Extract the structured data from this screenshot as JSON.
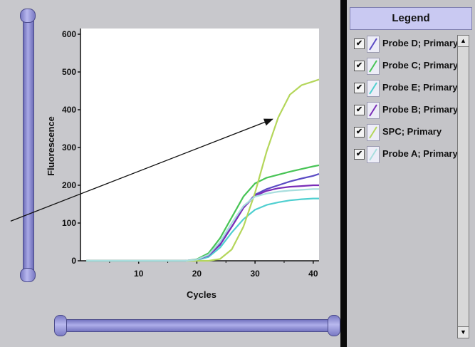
{
  "legend": {
    "title": "Legend",
    "items": [
      {
        "label": "Probe D; Primary",
        "color": "#5b4bc4",
        "checked": "✔"
      },
      {
        "label": "Probe C; Primary",
        "color": "#48c456",
        "checked": "✔"
      },
      {
        "label": "Probe E; Primary",
        "color": "#4fcfd0",
        "checked": "✔"
      },
      {
        "label": "Probe B; Primary",
        "color": "#7a2db8",
        "checked": "✔"
      },
      {
        "label": "SPC; Primary",
        "color": "#b4d65a",
        "checked": "✔"
      },
      {
        "label": "Probe A; Primary",
        "color": "#a8dede",
        "checked": "✔"
      }
    ],
    "scroll_up": "▲",
    "scroll_down": "▼"
  },
  "chart_data": {
    "type": "line",
    "xlabel": "Cycles",
    "ylabel": "Fluorescence",
    "xlim": [
      0,
      41
    ],
    "ylim": [
      0,
      600
    ],
    "x_ticks": [
      10,
      20,
      30,
      40
    ],
    "y_ticks": [
      0,
      100,
      200,
      300,
      400,
      500,
      600
    ],
    "grid": false,
    "series": [
      {
        "name": "Probe D; Primary",
        "color": "#5b4bc4",
        "x": [
          1,
          18,
          20,
          22,
          24,
          26,
          28,
          30,
          32,
          34,
          36,
          38,
          40,
          41
        ],
        "y": [
          0,
          0,
          3,
          15,
          45,
          90,
          140,
          175,
          190,
          200,
          210,
          218,
          225,
          230
        ]
      },
      {
        "name": "Probe C; Primary",
        "color": "#48c456",
        "x": [
          1,
          18,
          20,
          22,
          24,
          26,
          28,
          30,
          32,
          34,
          36,
          38,
          40,
          41
        ],
        "y": [
          0,
          0,
          4,
          20,
          60,
          115,
          170,
          205,
          220,
          228,
          236,
          243,
          250,
          253
        ]
      },
      {
        "name": "Probe E; Primary",
        "color": "#4fcfd0",
        "x": [
          1,
          18,
          20,
          22,
          24,
          26,
          28,
          30,
          32,
          34,
          36,
          38,
          40,
          41
        ],
        "y": [
          0,
          0,
          2,
          10,
          35,
          75,
          110,
          135,
          148,
          155,
          160,
          163,
          165,
          165
        ]
      },
      {
        "name": "Probe B; Primary",
        "color": "#7a2db8",
        "x": [
          1,
          18,
          20,
          22,
          24,
          26,
          28,
          30,
          32,
          34,
          36,
          38,
          40,
          41
        ],
        "y": [
          0,
          0,
          3,
          14,
          42,
          90,
          140,
          172,
          185,
          192,
          196,
          198,
          200,
          200
        ]
      },
      {
        "name": "SPC; Primary",
        "color": "#b4d65a",
        "x": [
          1,
          22,
          24,
          26,
          28,
          30,
          32,
          34,
          36,
          38,
          40,
          41
        ],
        "y": [
          0,
          0,
          5,
          30,
          90,
          180,
          290,
          380,
          440,
          465,
          475,
          480
        ]
      },
      {
        "name": "Probe A; Primary",
        "color": "#a8dede",
        "x": [
          1,
          18,
          20,
          22,
          24,
          26,
          28,
          30,
          32,
          34,
          36,
          38,
          40,
          41
        ],
        "y": [
          0,
          0,
          3,
          16,
          50,
          100,
          145,
          170,
          178,
          183,
          186,
          188,
          190,
          190
        ]
      }
    ],
    "annotations": [
      {
        "type": "arrow",
        "from": [
          -12,
          105
        ],
        "to": [
          33,
          375
        ]
      }
    ]
  }
}
